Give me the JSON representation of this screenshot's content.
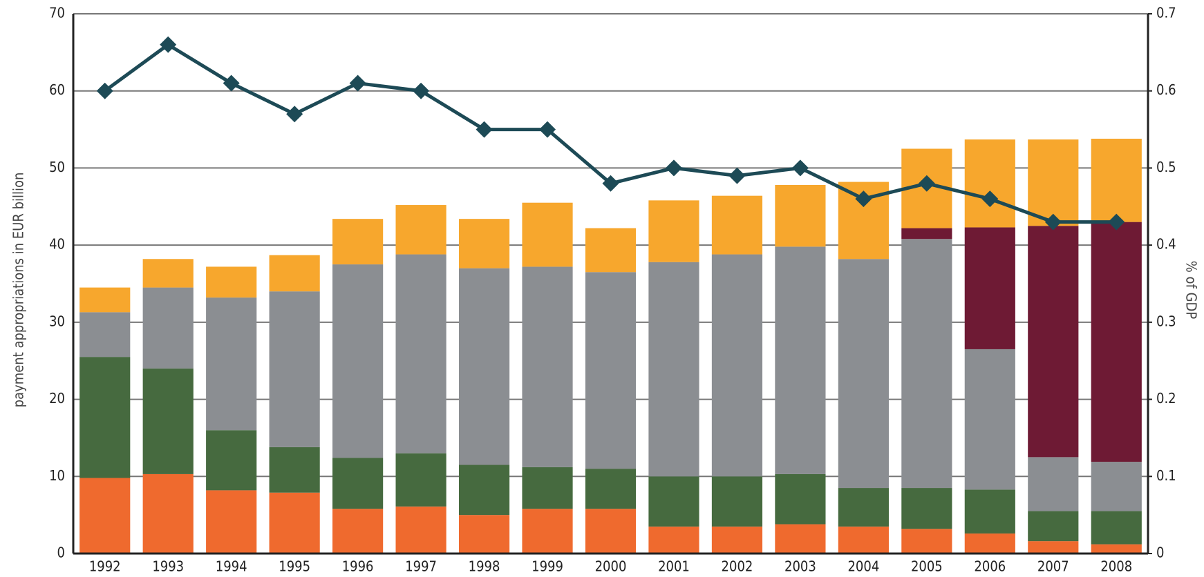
{
  "chart_data": {
    "type": "bar",
    "stacked": true,
    "ylabel": "payment appropriations in EUR billion",
    "y2label": "% of GDP",
    "categories": [
      "1992",
      "1993",
      "1994",
      "1995",
      "1996",
      "1997",
      "1998",
      "1999",
      "2000",
      "2001",
      "2002",
      "2003",
      "2004",
      "2005",
      "2006",
      "2007",
      "2008"
    ],
    "series": [
      {
        "color": "#ef6a2e",
        "values": [
          9.8,
          10.3,
          8.2,
          7.9,
          5.8,
          6.1,
          5,
          5.8,
          5.8,
          3.5,
          3.5,
          3.8,
          3.5,
          3.2,
          2.6,
          1.6,
          1.2
        ]
      },
      {
        "color": "#466a3f",
        "values": [
          15.7,
          13.7,
          7.8,
          5.9,
          6.6,
          6.9,
          6.5,
          5.4,
          5.2,
          6.5,
          6.5,
          6.5,
          5,
          5.3,
          5.7,
          3.9,
          4.3
        ]
      },
      {
        "color": "#8b8e92",
        "values": [
          5.8,
          10.5,
          17.2,
          20.2,
          25.1,
          25.8,
          25.5,
          26,
          25.5,
          27.8,
          28.8,
          29.5,
          29.7,
          32.3,
          18.2,
          7,
          6.4
        ]
      },
      {
        "color": "#6e1a34",
        "values": [
          0,
          0,
          0,
          0,
          0,
          0,
          0,
          0,
          0,
          0,
          0,
          0,
          0,
          1.4,
          15.8,
          30,
          31.1
        ]
      },
      {
        "color": "#f7a72d",
        "values": [
          3.2,
          3.7,
          4,
          4.7,
          5.9,
          6.4,
          6.4,
          8.3,
          5.7,
          8,
          7.6,
          8,
          10,
          10.3,
          11.4,
          11.2,
          10.8
        ]
      },
      {
        "type": "line",
        "axis": "y2",
        "color": "#1d4a56",
        "values": [
          0.6,
          0.66,
          0.61,
          0.57,
          0.61,
          0.6,
          0.55,
          0.55,
          0.48,
          0.5,
          0.49,
          0.5,
          0.46,
          0.48,
          0.46,
          0.43,
          0.43
        ]
      }
    ],
    "ylim": [
      0,
      70
    ],
    "yticks": [
      0,
      10,
      20,
      30,
      40,
      50,
      60,
      70
    ],
    "y2lim": [
      0,
      0.7
    ],
    "y2ticks": [
      0,
      0.1,
      0.2,
      0.3,
      0.4,
      0.5,
      0.6,
      0.7
    ],
    "grid": true
  }
}
